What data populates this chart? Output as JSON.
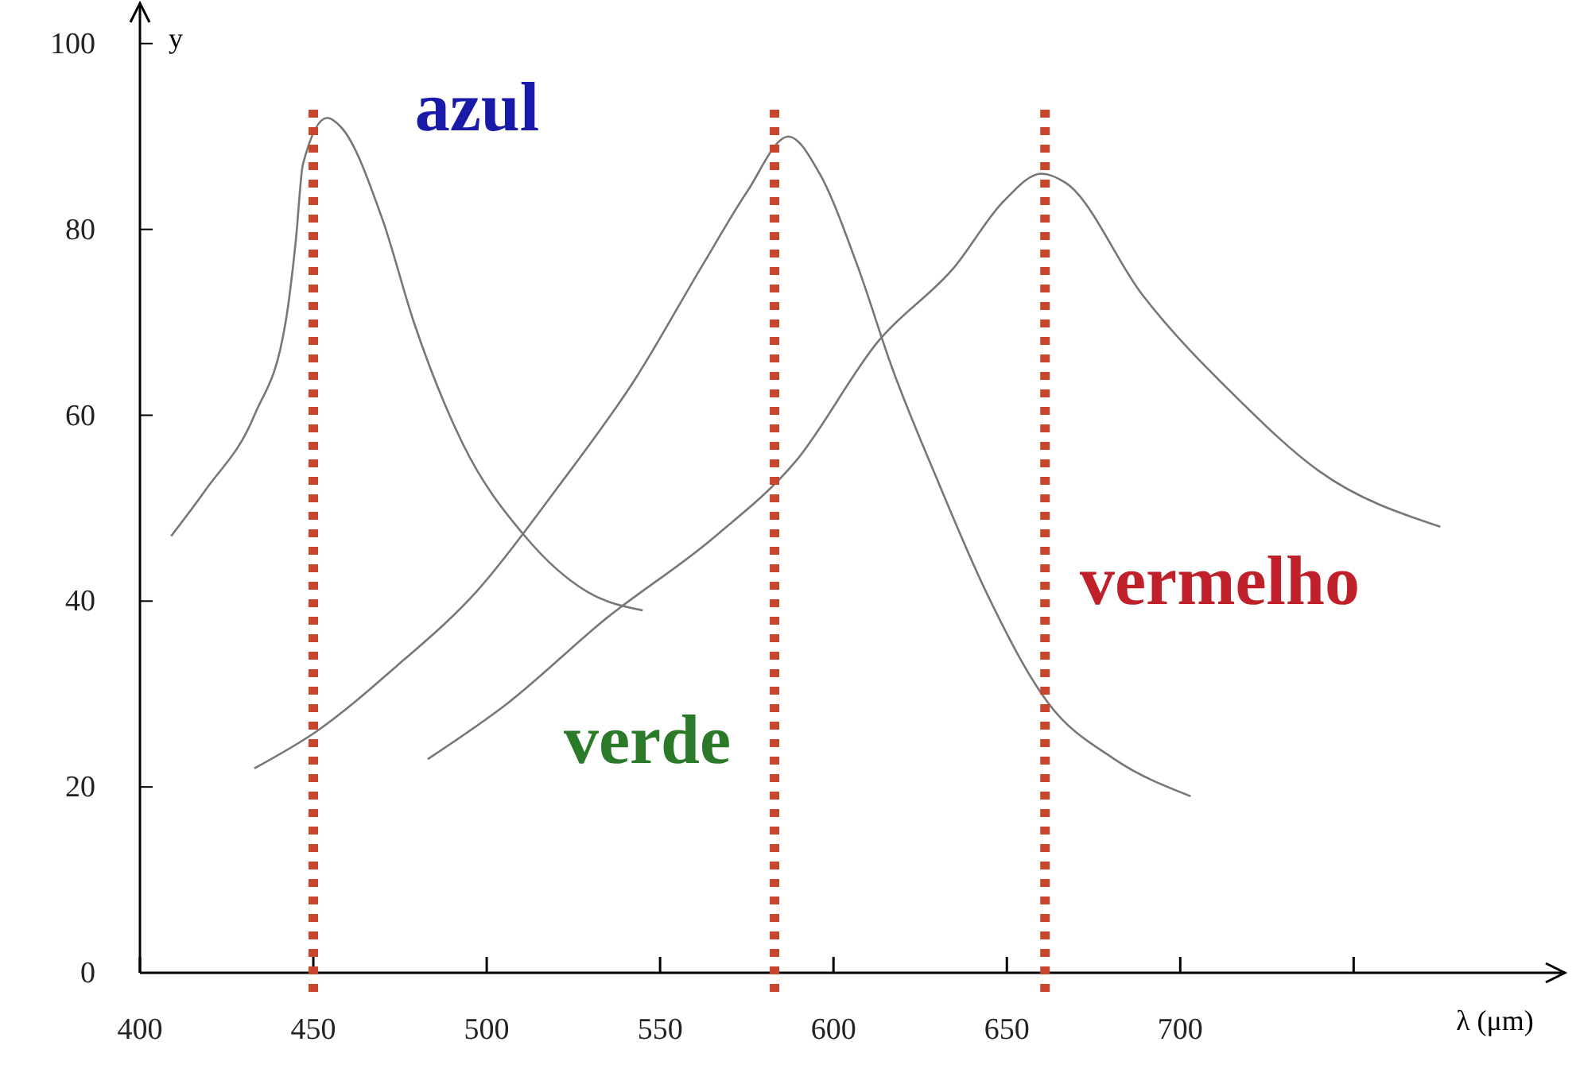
{
  "chart_data": {
    "type": "line",
    "xlabel": "λ (μm)",
    "ylabel": "y",
    "xlim": [
      400,
      810
    ],
    "ylim": [
      0,
      104
    ],
    "xticks": [
      400,
      450,
      500,
      550,
      600,
      650,
      700,
      {
        "value": 750,
        "label": null
      }
    ],
    "yticks": [
      0,
      20,
      40,
      60,
      80,
      100
    ],
    "grid": false,
    "marker": "none",
    "line_style": "solid",
    "series": [
      {
        "color": "#777777",
        "x": [
          409,
          419,
          433,
          442,
          445,
          447,
          454,
          458,
          470,
          479,
          493,
          511,
          529,
          545
        ],
        "values": [
          47,
          52,
          60,
          70,
          79,
          87,
          92,
          91,
          81,
          70,
          57,
          47,
          41,
          39
        ]
      },
      {
        "color": "#777777",
        "x": [
          433,
          451,
          474,
          497,
          520,
          543,
          562,
          575,
          587,
          596,
          607,
          617,
          630,
          644,
          662,
          681,
          703
        ],
        "values": [
          22,
          26,
          33,
          41,
          52,
          64,
          76,
          84,
          90,
          86,
          76,
          65,
          53,
          41,
          29,
          23,
          19
        ]
      },
      {
        "color": "#777777",
        "x": [
          483,
          506,
          534,
          566,
          589,
          613,
          635,
          649,
          660,
          667,
          689,
          716,
          740,
          775
        ],
        "values": [
          23,
          29,
          38,
          47,
          55,
          68,
          76,
          83,
          86,
          85,
          73,
          62,
          54,
          48
        ]
      }
    ],
    "ref_lines": [
      {
        "axis": "x",
        "value": 450,
        "color": "#c8462e",
        "line_style": "dotted"
      },
      {
        "axis": "x",
        "value": 583,
        "color": "#c8462e",
        "line_style": "dotted"
      },
      {
        "axis": "x",
        "value": 661,
        "color": "#c8462e",
        "line_style": "dotted"
      }
    ],
    "annotations": [
      "azul",
      "verde",
      "vermelho"
    ]
  }
}
